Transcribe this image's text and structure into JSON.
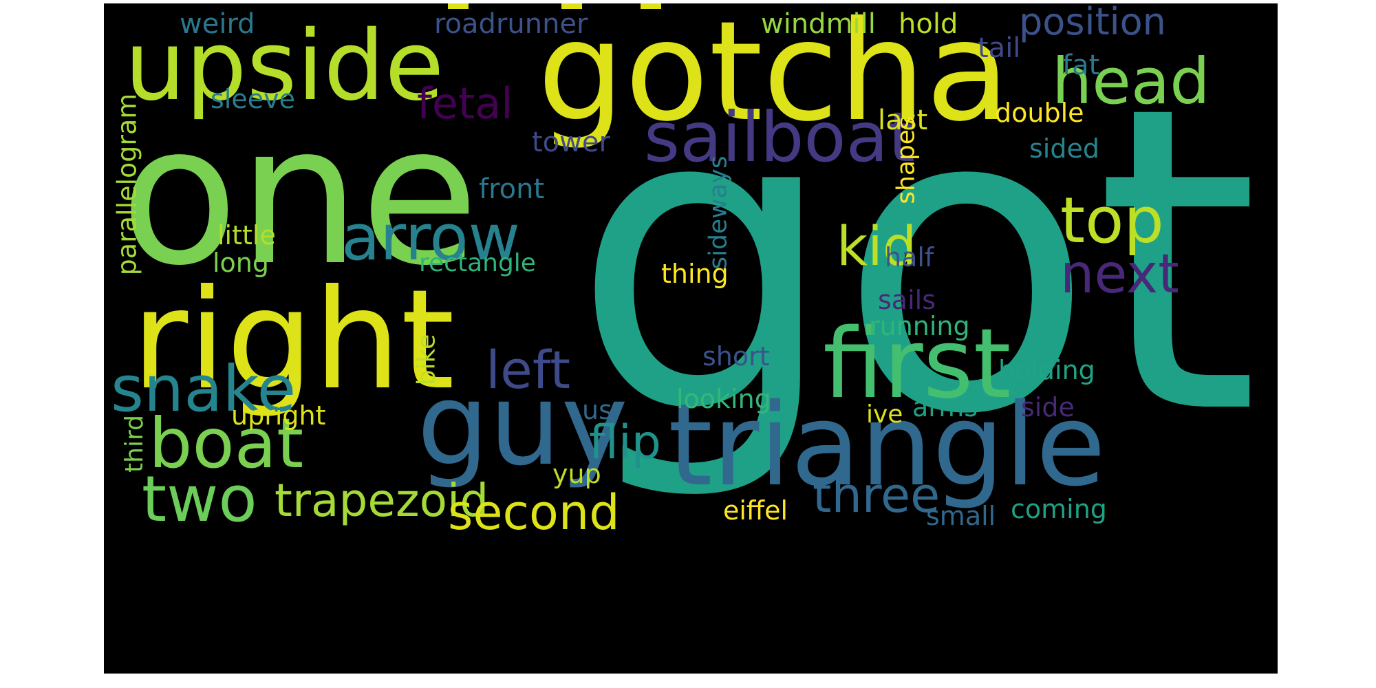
{
  "wordcloud": {
    "words": [
      {
        "text": "got",
        "color": "#1fa187"
      },
      {
        "text": "one",
        "color": "#7ad151"
      },
      {
        "text": "gotcha",
        "color": "#dde318"
      },
      {
        "text": "upside",
        "color": "#b5de2b"
      },
      {
        "text": "right",
        "color": "#dde318"
      },
      {
        "text": "triangle",
        "color": "#31688e"
      },
      {
        "text": "guy",
        "color": "#31688e"
      },
      {
        "text": "first",
        "color": "#44bf70"
      },
      {
        "text": "sailboat",
        "color": "#443a83"
      },
      {
        "text": "head",
        "color": "#7ad151"
      },
      {
        "text": "fetal",
        "color": "#440154"
      },
      {
        "text": "position",
        "color": "#3b528b"
      },
      {
        "text": "top",
        "color": "#bddf26"
      },
      {
        "text": "arrow",
        "color": "#26828e"
      },
      {
        "text": "kid",
        "color": "#bddf26"
      },
      {
        "text": "next",
        "color": "#482878"
      },
      {
        "text": "snake",
        "color": "#25858e"
      },
      {
        "text": "boat",
        "color": "#7ad151"
      },
      {
        "text": "two",
        "color": "#6ccd5a"
      },
      {
        "text": "left",
        "color": "#3e4a89"
      },
      {
        "text": "flip",
        "color": "#21918c"
      },
      {
        "text": "trapezoid",
        "color": "#a5db36"
      },
      {
        "text": "second",
        "color": "#dde318"
      },
      {
        "text": "three",
        "color": "#31688e"
      },
      {
        "text": "weird",
        "color": "#2a788e"
      },
      {
        "text": "roadrunner",
        "color": "#3b528b"
      },
      {
        "text": "windmill",
        "color": "#95d840"
      },
      {
        "text": "hold",
        "color": "#bddf26"
      },
      {
        "text": "tail",
        "color": "#3e4a89"
      },
      {
        "text": "fat",
        "color": "#2a788e"
      },
      {
        "text": "sleeve",
        "color": "#287d8e"
      },
      {
        "text": "last",
        "color": "#dde318"
      },
      {
        "text": "double",
        "color": "#fde725"
      },
      {
        "text": "tower",
        "color": "#3e4a89"
      },
      {
        "text": "sided",
        "color": "#25858e"
      },
      {
        "text": "parallelogram",
        "color": "#a5db36"
      },
      {
        "text": "front",
        "color": "#2a788e"
      },
      {
        "text": "shapes",
        "color": "#fde725"
      },
      {
        "text": "sideways",
        "color": "#287d8e"
      },
      {
        "text": "little",
        "color": "#b5de2b"
      },
      {
        "text": "long",
        "color": "#7ad151"
      },
      {
        "text": "rectangle",
        "color": "#2fb47c"
      },
      {
        "text": "thing",
        "color": "#fde725"
      },
      {
        "text": "half",
        "color": "#3b528b"
      },
      {
        "text": "sails",
        "color": "#482878"
      },
      {
        "text": "running",
        "color": "#2fb47c"
      },
      {
        "text": "bike",
        "color": "#bddf26"
      },
      {
        "text": "short",
        "color": "#3b528b"
      },
      {
        "text": "holding",
        "color": "#20a386"
      },
      {
        "text": "looking",
        "color": "#35b779"
      },
      {
        "text": "upright",
        "color": "#dde318"
      },
      {
        "text": "us",
        "color": "#31688e"
      },
      {
        "text": "ive",
        "color": "#dde318"
      },
      {
        "text": "arms",
        "color": "#1fa187"
      },
      {
        "text": "side",
        "color": "#482878"
      },
      {
        "text": "third",
        "color": "#7ad151"
      },
      {
        "text": "yup",
        "color": "#bddf26"
      },
      {
        "text": "eiffel",
        "color": "#fde725"
      },
      {
        "text": "small",
        "color": "#31688e"
      },
      {
        "text": "coming",
        "color": "#1fa187"
      }
    ]
  }
}
